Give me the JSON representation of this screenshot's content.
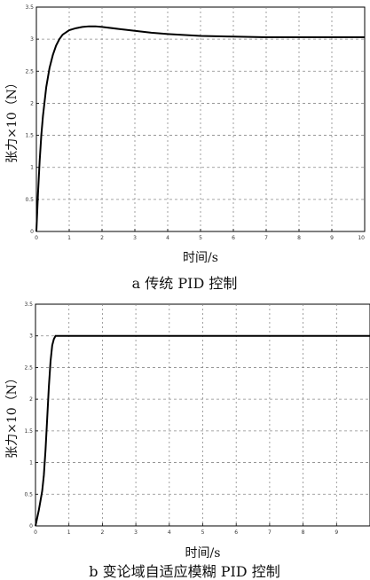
{
  "chart_data": [
    {
      "type": "line",
      "ylabel": "张力×10（N）",
      "xlabel": "时间/s",
      "caption": "a  传统 PID 控制",
      "xlim": [
        0,
        10
      ],
      "ylim": [
        0,
        3.5
      ],
      "xticks": [
        "0",
        "1",
        "2",
        "3",
        "4",
        "5",
        "6",
        "7",
        "8",
        "9",
        "10"
      ],
      "yticks": [
        "0",
        "0.5",
        "1",
        "1.5",
        "2",
        "2.5",
        "3",
        "3.5"
      ],
      "grid": true,
      "series": [
        {
          "x": [
            0,
            0.05,
            0.1,
            0.15,
            0.2,
            0.3,
            0.4,
            0.5,
            0.6,
            0.7,
            0.8,
            1.0,
            1.2,
            1.4,
            1.6,
            1.8,
            2.0,
            2.5,
            3.0,
            3.5,
            4.0,
            5.0,
            6.0,
            7.0,
            8.0,
            9.0,
            10.0
          ],
          "y": [
            0,
            0.6,
            1.1,
            1.5,
            1.8,
            2.25,
            2.55,
            2.75,
            2.9,
            3.0,
            3.07,
            3.14,
            3.17,
            3.19,
            3.2,
            3.2,
            3.19,
            3.16,
            3.13,
            3.1,
            3.08,
            3.05,
            3.04,
            3.03,
            3.03,
            3.03,
            3.03
          ]
        }
      ]
    },
    {
      "type": "line",
      "ylabel": "张力×10（N）",
      "xlabel": "时间/s",
      "caption": "b  变论域自适应模糊 PID 控制",
      "xlim": [
        0,
        10
      ],
      "ylim": [
        0,
        3.5
      ],
      "xticks": [
        "0",
        "1",
        "2",
        "3",
        "4",
        "5",
        "6",
        "7",
        "8",
        "9"
      ],
      "yticks": [
        "0",
        "0.5",
        "1",
        "1.5",
        "2",
        "2.5",
        "3",
        "3.5"
      ],
      "grid": true,
      "series": [
        {
          "x": [
            0,
            0.1,
            0.2,
            0.25,
            0.3,
            0.35,
            0.4,
            0.45,
            0.5,
            0.55,
            0.6,
            0.7,
            0.8,
            1.0,
            2.0,
            4.0,
            6.0,
            8.0,
            10.0
          ],
          "y": [
            0,
            0.25,
            0.55,
            0.8,
            1.2,
            1.7,
            2.2,
            2.6,
            2.85,
            2.95,
            3.0,
            3.0,
            3.0,
            3.0,
            3.0,
            3.0,
            3.0,
            3.0,
            3.0
          ]
        }
      ]
    }
  ]
}
